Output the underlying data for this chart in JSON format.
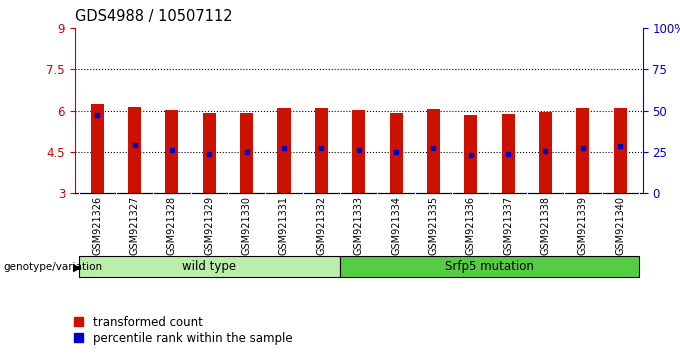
{
  "title": "GDS4988 / 10507112",
  "samples": [
    "GSM921326",
    "GSM921327",
    "GSM921328",
    "GSM921329",
    "GSM921330",
    "GSM921331",
    "GSM921332",
    "GSM921333",
    "GSM921334",
    "GSM921335",
    "GSM921336",
    "GSM921337",
    "GSM921338",
    "GSM921339",
    "GSM921340"
  ],
  "bar_heights": [
    6.25,
    6.15,
    6.02,
    5.9,
    5.9,
    6.08,
    6.08,
    6.04,
    5.9,
    6.05,
    5.85,
    5.88,
    5.95,
    6.1,
    6.1
  ],
  "blue_dots": [
    5.85,
    4.75,
    4.55,
    4.42,
    4.5,
    4.65,
    4.62,
    4.55,
    4.48,
    4.65,
    4.4,
    4.42,
    4.52,
    4.65,
    4.7
  ],
  "bar_color": "#cc1100",
  "dot_color": "#0000cc",
  "ylim": [
    3,
    9
  ],
  "yticks_left": [
    3,
    4.5,
    6,
    7.5,
    9
  ],
  "ytick_labels_left": [
    "3",
    "4.5",
    "6",
    "7.5",
    "9"
  ],
  "yticks_right_y": [
    3.0,
    4.5,
    6.0,
    7.5,
    9.0
  ],
  "ytick_labels_right": [
    "0",
    "25",
    "50",
    "75",
    "100%"
  ],
  "grid_lines": [
    4.5,
    6.0,
    7.5
  ],
  "bar_bottom": 3.0,
  "genotype_labels": [
    "wild type",
    "Srfp5 mutation"
  ],
  "genotype_colors": [
    "#bbeeaa",
    "#55cc44"
  ],
  "wild_type_count": 7,
  "legend_labels": [
    "transformed count",
    "percentile rank within the sample"
  ],
  "legend_colors": [
    "#cc1100",
    "#0000cc"
  ],
  "left_axis_color": "#cc0000",
  "right_axis_color": "#0000cc",
  "tick_bg_color": "#c8c8c8",
  "bar_width": 0.35
}
